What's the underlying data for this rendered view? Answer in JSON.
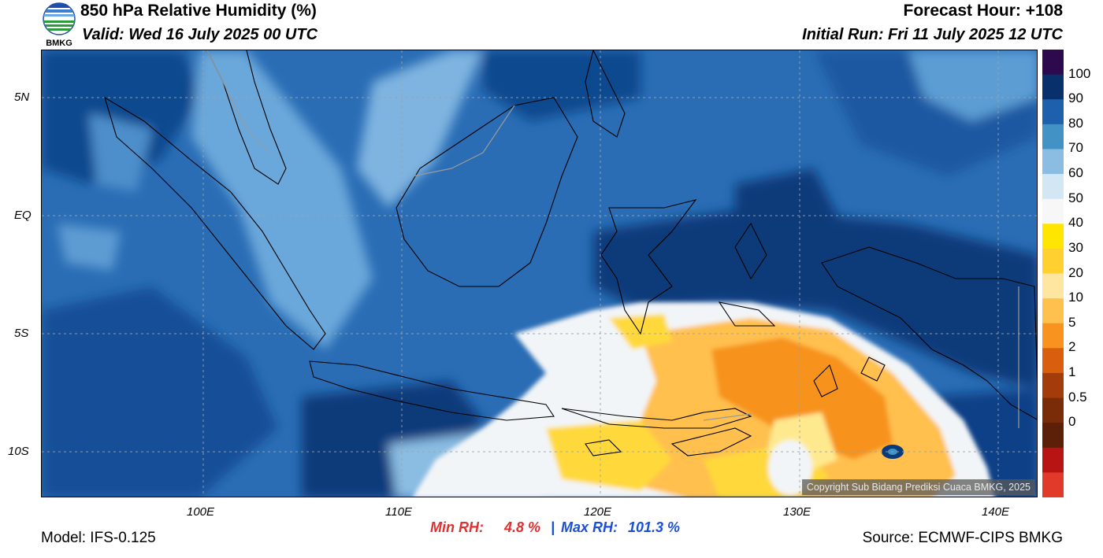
{
  "header": {
    "title": "850 hPa Relative Humidity (%)",
    "valid": "Valid: Wed 16 July 2025 00 UTC",
    "forecast_hour": "Forecast Hour: +108",
    "initial_run": "Initial Run: Fri 11 July 2025 12 UTC",
    "logo_text": "BMKG"
  },
  "map": {
    "lat_labels": [
      "5N",
      "EQ",
      "5S",
      "10S"
    ],
    "lon_labels": [
      "100E",
      "110E",
      "120E",
      "130E",
      "140E"
    ],
    "copyright": "Copyright Sub Bidang Prediksi Cuaca BMKG, 2025"
  },
  "colorbar": {
    "labels": [
      "100",
      "90",
      "80",
      "70",
      "60",
      "50",
      "40",
      "30",
      "20",
      "10",
      "5",
      "2",
      "1",
      "0.5",
      "0"
    ],
    "colors": [
      "#2d0a4e",
      "#08306b",
      "#1f60ad",
      "#4292c6",
      "#8bbde3",
      "#d2e6f4",
      "#f7f7f7",
      "#ffe600",
      "#ffd030",
      "#ffe6a0",
      "#ffc14d",
      "#f7931e",
      "#d95f0e",
      "#a33c0b",
      "#7a2b08",
      "#5c1f08",
      "#b81414",
      "#e23a2a"
    ],
    "accent_min": "#e03030",
    "accent_max": "#1a4fd8"
  },
  "stats": {
    "min_label": "Min RH:",
    "min_value": "4.8 %",
    "separator": "|",
    "max_label": "Max RH:",
    "max_value": "101.3 %"
  },
  "footer": {
    "model": "Model: IFS-0.125",
    "source": "Source: ECMWF-CIPS BMKG"
  }
}
